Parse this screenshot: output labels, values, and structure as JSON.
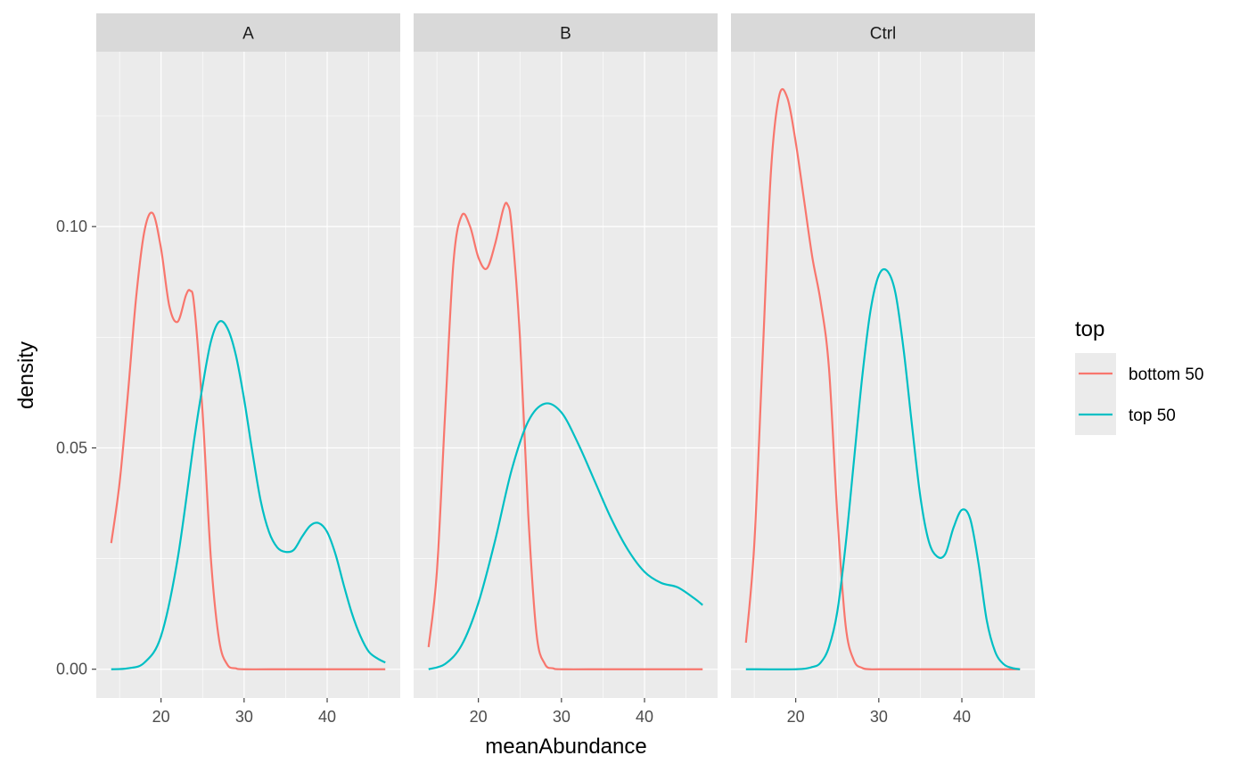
{
  "chart_data": {
    "type": "line",
    "xlabel": "meanAbundance",
    "ylabel": "density",
    "xlim": [
      12.2,
      48.8
    ],
    "ylim": [
      -0.0065,
      0.1395
    ],
    "x_ticks": [
      20,
      30,
      40
    ],
    "y_ticks": [
      0.0,
      0.05,
      0.1
    ],
    "y_tick_labels": [
      "0.00",
      "0.05",
      "0.10"
    ],
    "grid": true,
    "legend": {
      "title": "top",
      "position": "right",
      "entries": [
        "bottom 50",
        "top 50"
      ]
    },
    "colors": {
      "bottom 50": "#F8766D",
      "top 50": "#00BFC4"
    },
    "panels": [
      {
        "label": "A",
        "series": [
          {
            "name": "bottom 50",
            "x": [
              14,
              15,
              16,
              17,
              18,
              19,
              20,
              21,
              22,
              23,
              23.5,
              24,
              25,
              26,
              27,
              28,
              29,
              30,
              35,
              40,
              47
            ],
            "y": [
              0.0285,
              0.042,
              0.062,
              0.084,
              0.099,
              0.103,
              0.095,
              0.082,
              0.0785,
              0.0845,
              0.0855,
              0.082,
              0.058,
              0.025,
              0.0065,
              0.001,
              0.0002,
              0.0,
              0.0,
              0.0,
              0.0
            ]
          },
          {
            "name": "top 50",
            "x": [
              14,
              16,
              18,
              20,
              22,
              24,
              25,
              26,
              27,
              28,
              29,
              30,
              31,
              32,
              33,
              34,
              35,
              36,
              37,
              38,
              39,
              40,
              41,
              42,
              43,
              44,
              45,
              46,
              47
            ],
            "y": [
              0.0,
              0.0002,
              0.0015,
              0.0075,
              0.025,
              0.052,
              0.064,
              0.074,
              0.0785,
              0.077,
              0.071,
              0.061,
              0.049,
              0.038,
              0.031,
              0.0275,
              0.0265,
              0.027,
              0.03,
              0.0325,
              0.033,
              0.031,
              0.026,
              0.019,
              0.0125,
              0.0075,
              0.004,
              0.0025,
              0.0015
            ]
          }
        ]
      },
      {
        "label": "B",
        "series": [
          {
            "name": "bottom 50",
            "x": [
              14,
              15,
              16,
              17,
              18,
              19,
              20,
              21,
              22,
              23,
              23.5,
              24,
              25,
              26,
              27,
              28,
              29,
              30,
              35,
              40,
              47
            ],
            "y": [
              0.005,
              0.022,
              0.058,
              0.092,
              0.1025,
              0.1,
              0.093,
              0.0905,
              0.096,
              0.104,
              0.105,
              0.1,
              0.075,
              0.035,
              0.008,
              0.0012,
              0.0002,
              0.0,
              0.0,
              0.0,
              0.0
            ]
          },
          {
            "name": "top 50",
            "x": [
              14,
              16,
              18,
              20,
              22,
              24,
              26,
              28,
              30,
              32,
              34,
              36,
              38,
              40,
              42,
              44,
              46,
              47
            ],
            "y": [
              0.0,
              0.0012,
              0.0055,
              0.015,
              0.029,
              0.045,
              0.056,
              0.06,
              0.058,
              0.051,
              0.0425,
              0.034,
              0.027,
              0.022,
              0.0195,
              0.0185,
              0.016,
              0.0145
            ]
          }
        ]
      },
      {
        "label": "Ctrl",
        "series": [
          {
            "name": "bottom 50",
            "x": [
              14,
              15,
              16,
              17,
              18,
              19,
              20,
              21,
              22,
              23,
              24,
              25,
              26,
              27,
              28,
              29,
              30,
              35,
              40,
              47
            ],
            "y": [
              0.006,
              0.028,
              0.07,
              0.112,
              0.1295,
              0.129,
              0.119,
              0.106,
              0.093,
              0.083,
              0.068,
              0.035,
              0.01,
              0.002,
              0.0003,
              0.0,
              0.0,
              0.0,
              0.0,
              0.0
            ]
          },
          {
            "name": "top 50",
            "x": [
              14,
              20,
              22,
              23,
              24,
              25,
              26,
              27,
              28,
              29,
              30,
              31,
              32,
              33,
              34,
              35,
              36,
              37,
              38,
              39,
              40,
              41,
              42,
              43,
              44,
              45,
              46,
              47
            ],
            "y": [
              0.0,
              0.0,
              0.0005,
              0.0015,
              0.005,
              0.013,
              0.028,
              0.047,
              0.066,
              0.081,
              0.089,
              0.09,
              0.085,
              0.072,
              0.055,
              0.039,
              0.029,
              0.0255,
              0.026,
              0.032,
              0.036,
              0.034,
              0.024,
              0.011,
              0.004,
              0.0012,
              0.0003,
              0.0
            ]
          }
        ]
      }
    ]
  }
}
